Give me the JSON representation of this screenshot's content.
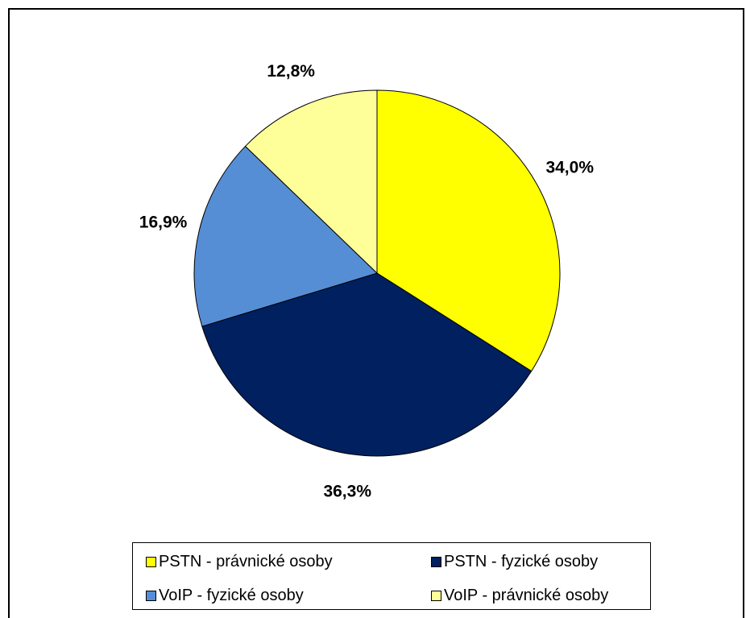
{
  "chart_data": {
    "type": "pie",
    "title": "",
    "start_angle_deg": 0,
    "direction": "clockwise",
    "categories": [
      "PSTN - právnické osoby",
      "PSTN - fyzické osoby",
      "VoIP - fyzické osoby",
      "VoIP - právnické osoby"
    ],
    "values": [
      34.0,
      36.3,
      16.9,
      12.8
    ],
    "value_labels": [
      "34,0%",
      "36,3%",
      "16,9%",
      "12,8%"
    ],
    "colors": [
      "#FFFF00",
      "#002060",
      "#558ED5",
      "#FFFF99"
    ],
    "legend_position": "bottom"
  },
  "legend": {
    "items": [
      {
        "label": "PSTN - právnické osoby",
        "color": "#FFFF00"
      },
      {
        "label": "PSTN - fyzické osoby",
        "color": "#002060"
      },
      {
        "label": "VoIP - fyzické osoby",
        "color": "#558ED5"
      },
      {
        "label": "VoIP - právnické osoby",
        "color": "#FFFF99"
      }
    ]
  }
}
